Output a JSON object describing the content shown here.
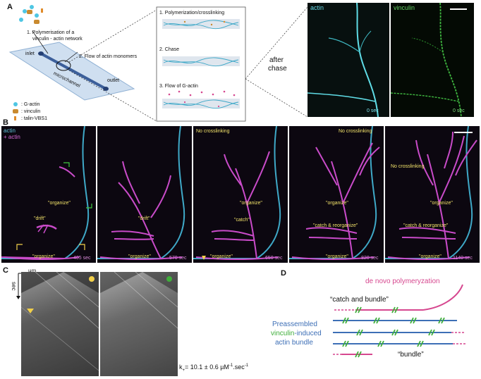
{
  "panel_labels": {
    "a": "A",
    "b": "B",
    "c": "C",
    "d": "D"
  },
  "panelA": {
    "step1": "1. Polymerisation of a",
    "step1b": "vinculin - actin network",
    "step2": "2. Flow of actin monomers",
    "inlet": "inlet",
    "outlet": "outlet",
    "microchannel": "microchannel",
    "legend": [
      ": G-actin",
      ": vinculin",
      ": talin-VBS1"
    ],
    "box_steps": [
      "1. Polymerization/crosslinking",
      "2. Chase",
      "3. Flow of G-actin"
    ],
    "after_chase": [
      "after",
      "chase"
    ],
    "img_actin_label": "actin",
    "img_vinculin_label": "vinculin",
    "time": "0 sec"
  },
  "panelB": {
    "legend": [
      "actin",
      "+ actin"
    ],
    "frames": [
      {
        "time": "405 sec",
        "labels": [
          "\"organize\"",
          "\"drift\"",
          "\"organize\""
        ],
        "header": ""
      },
      {
        "time": "570 sec",
        "labels": [
          "\"drift\"",
          "\"organize\""
        ],
        "header": ""
      },
      {
        "time": "650 sec",
        "labels": [
          "\"organize\"",
          "\"catch\"",
          "\"organize\""
        ],
        "header": "No crosslinking"
      },
      {
        "time": "820 sec",
        "labels": [
          "\"organize\"",
          "\"catch & reorganize\"",
          "\"organize\""
        ],
        "header": "No crosslinking"
      },
      {
        "time": "1140 sec",
        "labels": [
          "\"organize\"",
          "\"catch & reorganize\"",
          "\"organize\""
        ],
        "header": "No crosslinking"
      }
    ]
  },
  "panelC": {
    "x_axis": "µm",
    "y_axis": "sec",
    "rate": "k",
    "rate_sub": "+",
    "rate_eq": "= 10.1 ± 0.6 µM",
    "rate_sup1": "-1",
    "rate_mid": ".sec",
    "rate_sup2": "-1"
  },
  "panelD": {
    "de_novo": "de novo polymeryzation",
    "catch": "“catch and bundle”",
    "pre1": "Preassembled",
    "pre2a": "vinculin",
    "pre2b": "-induced",
    "pre3": "actin bundle",
    "bundle": "“bundle”",
    "colors": {
      "pink": "#d6478f",
      "blue": "#3d6fb6",
      "green": "#3fae3a"
    }
  }
}
